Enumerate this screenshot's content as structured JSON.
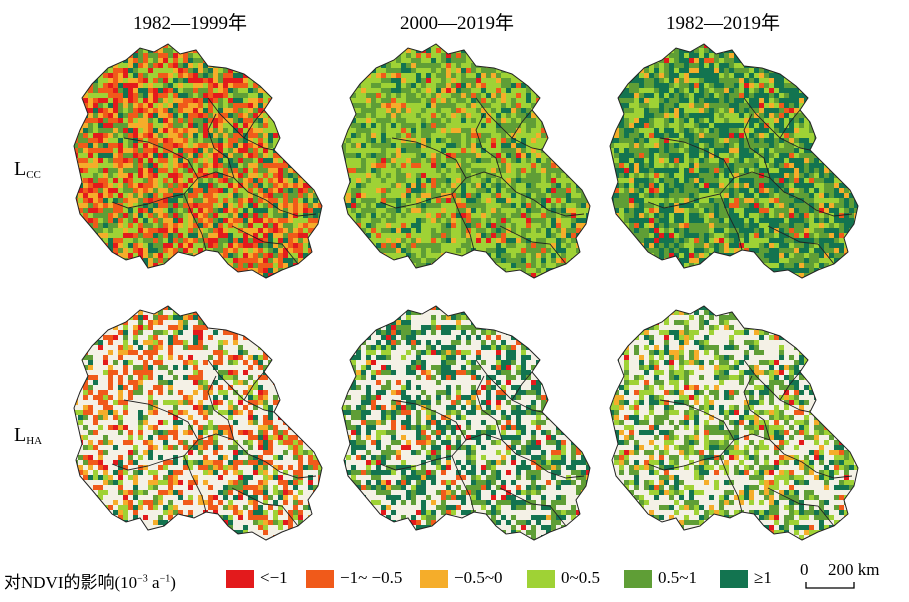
{
  "columns": [
    {
      "title": "1982—1999年"
    },
    {
      "title": "2000—2019年"
    },
    {
      "title": "1982—2019年"
    }
  ],
  "rows": [
    {
      "label_main": "L",
      "label_sub": "CC"
    },
    {
      "label_main": "L",
      "label_sub": "HA"
    }
  ],
  "maps": [
    {
      "row": "L_CC",
      "period": "1982—1999年",
      "shares": [
        0.14,
        0.22,
        0.2,
        0.18,
        0.16,
        0.1
      ]
    },
    {
      "row": "L_CC",
      "period": "2000—2019年",
      "shares": [
        0.02,
        0.05,
        0.08,
        0.4,
        0.33,
        0.12
      ]
    },
    {
      "row": "L_CC",
      "period": "1982—2019年",
      "shares": [
        0.02,
        0.04,
        0.06,
        0.2,
        0.3,
        0.38
      ]
    },
    {
      "row": "L_HA",
      "period": "1982—1999年",
      "shares": [
        0.05,
        0.35,
        0.15,
        0.15,
        0.15,
        0.15
      ],
      "sparse": true
    },
    {
      "row": "L_HA",
      "period": "2000—2019年",
      "shares": [
        0.05,
        0.08,
        0.03,
        0.1,
        0.3,
        0.44
      ],
      "sparse": true
    },
    {
      "row": "L_HA",
      "period": "1982—2019年",
      "shares": [
        0.02,
        0.05,
        0.08,
        0.3,
        0.35,
        0.2
      ],
      "sparse": true
    }
  ],
  "legend": {
    "title_main": "对NDVI的影响(10",
    "title_sup": "−3",
    "title_mid": " a",
    "title_sup2": "−1",
    "title_end": ")",
    "classes": [
      {
        "label": "<−1",
        "color": "#e31a1c"
      },
      {
        "label": "−1~ −0.5",
        "color": "#f05a1a"
      },
      {
        "label": "−0.5~0",
        "color": "#f5ad2a"
      },
      {
        "label": "0~0.5",
        "color": "#9fd235"
      },
      {
        "label": "0.5~1",
        "color": "#5f9e36"
      },
      {
        "label": "≥1",
        "color": "#137450"
      }
    ]
  },
  "scale": {
    "zero": "0",
    "label": "200 km"
  },
  "colors": {
    "background": "#ffffff",
    "boundary": "#222222",
    "lightfill": "#f4f1e6"
  }
}
